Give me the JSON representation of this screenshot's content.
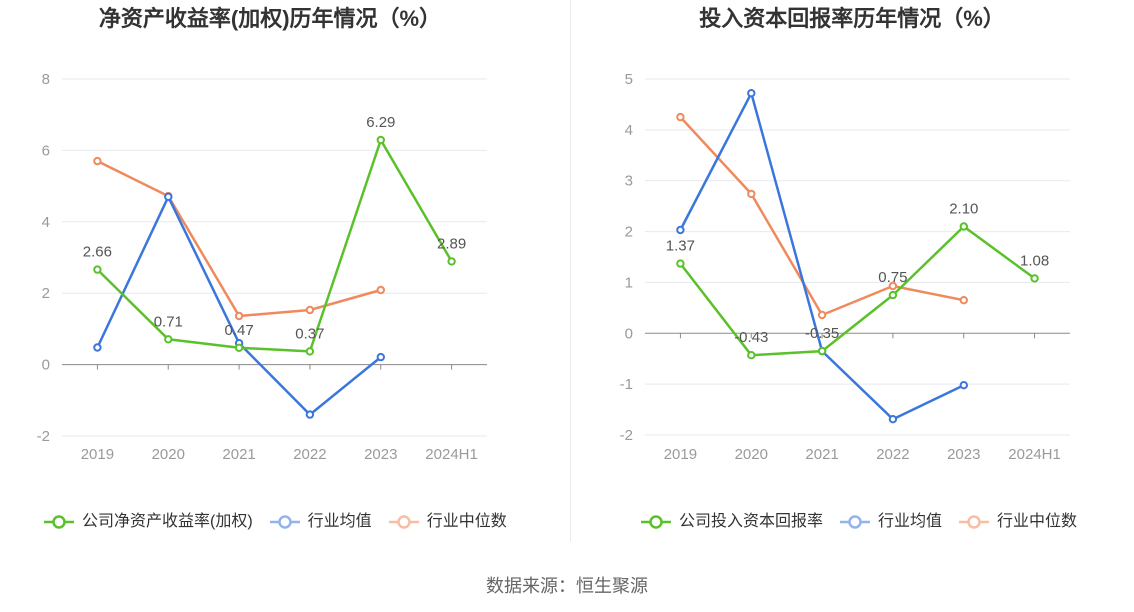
{
  "chart_data": [
    {
      "type": "line",
      "title": "净资产收益率(加权)历年情况（%）",
      "xlabel": "",
      "ylabel": "",
      "categories": [
        "2019",
        "2020",
        "2021",
        "2022",
        "2023",
        "2024H1"
      ],
      "ylim": [
        -2,
        8
      ],
      "yticks": [
        8,
        6,
        4,
        2,
        0,
        -2
      ],
      "grid": true,
      "legend": "bottom",
      "series": [
        {
          "name": "公司净资产收益率(加权)",
          "color": "#5bc12a",
          "values": [
            2.66,
            0.71,
            0.47,
            0.37,
            6.29,
            2.89
          ],
          "data_labels": [
            "2.66",
            "0.71",
            "0.47",
            "0.37",
            "6.29",
            "2.89"
          ]
        },
        {
          "name": "行业均值",
          "color": "#3b76dd",
          "values": [
            0.48,
            4.7,
            0.6,
            -1.4,
            0.21,
            null
          ]
        },
        {
          "name": "行业中位数",
          "color": "#ef8a5d",
          "values": [
            5.7,
            4.72,
            1.36,
            1.53,
            2.09,
            null
          ]
        }
      ]
    },
    {
      "type": "line",
      "title": "投入资本回报率历年情况（%）",
      "xlabel": "",
      "ylabel": "",
      "categories": [
        "2019",
        "2020",
        "2021",
        "2022",
        "2023",
        "2024H1"
      ],
      "ylim": [
        -2,
        5
      ],
      "yticks": [
        5,
        4,
        3,
        2,
        1,
        0,
        -1,
        -2
      ],
      "grid": true,
      "legend": "bottom",
      "series": [
        {
          "name": "公司投入资本回报率",
          "color": "#5bc12a",
          "values": [
            1.37,
            -0.43,
            -0.35,
            0.75,
            2.1,
            1.08
          ],
          "data_labels": [
            "1.37",
            "-0.43",
            "-0.35",
            "0.75",
            "2.10",
            "1.08"
          ]
        },
        {
          "name": "行业均值",
          "color": "#3b76dd",
          "values": [
            2.03,
            4.72,
            -0.35,
            -1.69,
            -1.02,
            null
          ]
        },
        {
          "name": "行业中位数",
          "color": "#ef8a5d",
          "values": [
            4.25,
            2.74,
            0.36,
            0.93,
            0.65,
            null
          ]
        }
      ]
    }
  ],
  "source": "数据来源：恒生聚源"
}
